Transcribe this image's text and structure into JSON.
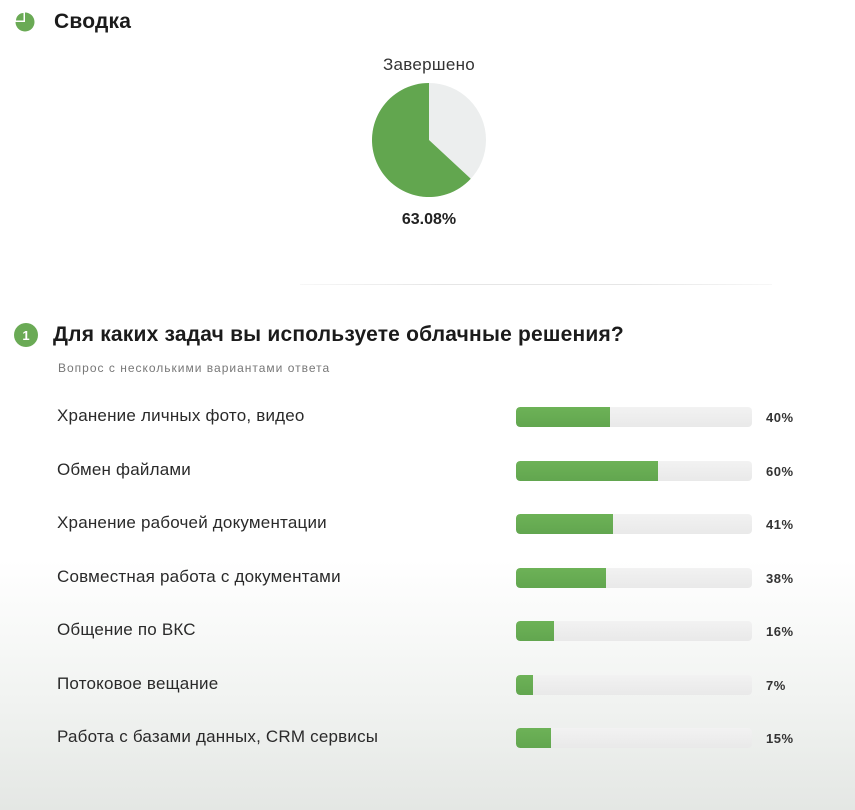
{
  "summary": {
    "title": "Сводка",
    "icon": "pie-chart-icon",
    "completed_label": "Завершено",
    "completed_percent": "63.08%",
    "completed_fraction": 0.6308,
    "colors": {
      "filled": "#62a64f",
      "empty": "#eceeee"
    }
  },
  "question": {
    "number": "1",
    "title": "Для каких задач вы используете облачные решения?",
    "subtitle": "Вопрос с несколькими вариантами ответа",
    "answers": [
      {
        "label": "Хранение личных фото, видео",
        "percent": "40%",
        "value": 40
      },
      {
        "label": "Обмен файлами",
        "percent": "60%",
        "value": 60
      },
      {
        "label": "Хранение рабочей документации",
        "percent": "41%",
        "value": 41
      },
      {
        "label": "Совместная работа с документами",
        "percent": "38%",
        "value": 38
      },
      {
        "label": "Общение по ВКС",
        "percent": "16%",
        "value": 16
      },
      {
        "label": "Потоковое вещание",
        "percent": "7%",
        "value": 7
      },
      {
        "label": "Работа с базами данных, CRM сервисы",
        "percent": "15%",
        "value": 15
      }
    ]
  },
  "chart_data": [
    {
      "type": "pie",
      "title": "Завершено",
      "slices": [
        {
          "value": 63.08,
          "color": "#62a64f"
        },
        {
          "value": 36.92,
          "color": "#eceeee"
        }
      ]
    },
    {
      "type": "bar",
      "title": "Для каких задач вы используете облачные решения?",
      "categories": [
        "Хранение личных фото, видео",
        "Обмен файлами",
        "Хранение рабочей документации",
        "Совместная работа с документами",
        "Общение по ВКС",
        "Потоковое вещание",
        "Работа с базами данных, CRM сервисы"
      ],
      "values": [
        40,
        60,
        41,
        38,
        16,
        7,
        15
      ],
      "ylim": [
        0,
        100
      ]
    }
  ]
}
